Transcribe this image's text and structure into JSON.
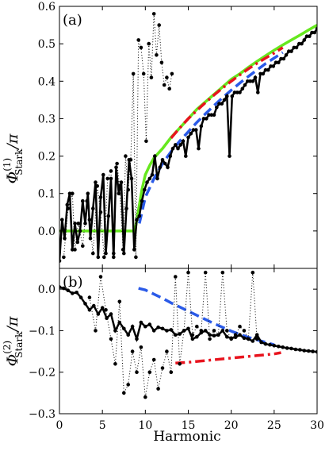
{
  "xlabel": "Harmonic",
  "chart_data": [
    {
      "type": "line",
      "panel_label": "(a)",
      "ylabel": {
        "main": "Φ",
        "superscript": "(1)",
        "subscript": "Stark",
        "suffix": "/π"
      },
      "xlim": [
        0,
        30
      ],
      "ylim": [
        -0.1,
        0.6
      ],
      "xticks": [
        "0",
        "5",
        "10",
        "15",
        "20",
        "25",
        "30"
      ],
      "yticks": [
        0.0,
        0.1,
        0.2,
        0.3,
        0.4,
        0.5,
        0.6
      ],
      "ytick_labels": [
        "0.0",
        "0.1",
        "0.2",
        "0.3",
        "0.4",
        "0.5",
        "0.6"
      ],
      "grid": false,
      "series": [
        {
          "style": "solid",
          "color": "#66e81e",
          "x": [
            0,
            8.8,
            9.0,
            9.3,
            9.6,
            10.0,
            10.5,
            11.0,
            12,
            13,
            14,
            15,
            16,
            17,
            18,
            19,
            20,
            21,
            22,
            23,
            24,
            25,
            26,
            27,
            28,
            29,
            30
          ],
          "y": [
            0.0,
            0.0,
            0.03,
            0.07,
            0.11,
            0.15,
            0.175,
            0.195,
            0.22,
            0.25,
            0.275,
            0.3,
            0.325,
            0.345,
            0.365,
            0.385,
            0.405,
            0.42,
            0.437,
            0.453,
            0.468,
            0.483,
            0.497,
            0.51,
            0.523,
            0.537,
            0.55
          ]
        },
        {
          "style": "dashdot",
          "color": "#e8141e",
          "x": [
            13,
            14,
            15,
            16,
            17,
            18,
            19,
            20,
            21,
            22,
            23,
            24,
            25,
            26
          ],
          "y": [
            0.248,
            0.275,
            0.3,
            0.322,
            0.343,
            0.363,
            0.382,
            0.4,
            0.417,
            0.433,
            0.448,
            0.462,
            0.475,
            0.49
          ]
        },
        {
          "style": "dashed",
          "color": "#2a5ae8",
          "x": [
            9.3,
            10,
            11,
            12,
            13,
            14,
            15,
            16,
            17,
            18,
            19,
            20,
            21,
            22,
            23,
            24,
            25,
            26
          ],
          "y": [
            0.02,
            0.09,
            0.14,
            0.18,
            0.212,
            0.24,
            0.265,
            0.29,
            0.313,
            0.335,
            0.356,
            0.376,
            0.395,
            0.413,
            0.43,
            0.447,
            0.462,
            0.477
          ]
        },
        {
          "style": "solid-dotted",
          "color": "#000000",
          "x": [
            0.0,
            0.3,
            0.6,
            0.9,
            1.2,
            1.5,
            1.8,
            2.1,
            2.4,
            2.7,
            3.0,
            3.3,
            3.6,
            3.9,
            4.2,
            4.5,
            4.8,
            5.1,
            5.4,
            5.7,
            6.0,
            6.3,
            6.6,
            6.9,
            7.2,
            7.5,
            7.8,
            8.1,
            8.4,
            8.7,
            9.0,
            9.3,
            9.6,
            9.9,
            10.2,
            10.5,
            10.8,
            11.1,
            11.4,
            11.7,
            12.0,
            12.3,
            12.6,
            12.9,
            13.2,
            13.5,
            13.8,
            14.1,
            14.4,
            14.7,
            15.0,
            15.3,
            15.6,
            15.9,
            16.2,
            16.5,
            16.8,
            17.1,
            17.4,
            17.7,
            18.0,
            18.3,
            18.6,
            18.9,
            19.2,
            19.5,
            19.8,
            20.1,
            20.4,
            20.7,
            21.0,
            21.3,
            21.6,
            21.9,
            22.2,
            22.5,
            22.8,
            23.1,
            23.4,
            23.7,
            24.0,
            24.3,
            24.6,
            24.9,
            25.2,
            25.5,
            25.8,
            26.1,
            26.4,
            26.7,
            27.0,
            27.3,
            27.6,
            27.9,
            28.2,
            28.5,
            28.8,
            29.1,
            29.4,
            29.7,
            30.0
          ],
          "y": [
            -0.08,
            0.03,
            -0.02,
            0.07,
            0.1,
            -0.05,
            0.02,
            -0.03,
            0.0,
            0.08,
            0.02,
            0.1,
            -0.02,
            0.06,
            0.13,
            -0.07,
            0.09,
            0.15,
            -0.06,
            0.04,
            0.14,
            -0.07,
            0.17,
            0.1,
            0.13,
            -0.06,
            0.06,
            0.19,
            0.14,
            -0.05,
            0.03,
            0.04,
            0.08,
            0.11,
            0.13,
            0.14,
            0.15,
            0.2,
            0.14,
            0.17,
            0.19,
            0.18,
            0.17,
            0.2,
            0.22,
            0.23,
            0.22,
            0.23,
            0.24,
            0.2,
            0.25,
            0.26,
            0.27,
            0.27,
            0.22,
            0.28,
            0.3,
            0.3,
            0.31,
            0.31,
            0.31,
            0.33,
            0.34,
            0.34,
            0.35,
            0.36,
            0.2,
            0.36,
            0.37,
            0.37,
            0.37,
            0.38,
            0.39,
            0.4,
            0.4,
            0.4,
            0.41,
            0.37,
            0.42,
            0.42,
            0.43,
            0.43,
            0.44,
            0.44,
            0.45,
            0.45,
            0.46,
            0.46,
            0.47,
            0.48,
            0.48,
            0.49,
            0.49,
            0.5,
            0.5,
            0.51,
            0.52,
            0.52,
            0.53,
            0.53,
            0.54
          ]
        },
        {
          "style": "dotted",
          "color": "#000000",
          "x": [
            0.5,
            1.0,
            1.5,
            1.8,
            2.2,
            2.7,
            3.2,
            3.5,
            3.9,
            4.4,
            4.8,
            5.2,
            5.6,
            6.0,
            6.3,
            6.7,
            7.0,
            7.4,
            7.7,
            8.0,
            8.3,
            8.6,
            8.9,
            9.2,
            9.5,
            9.8,
            10.1,
            10.4,
            10.7,
            11.0,
            11.3,
            11.6,
            11.9,
            12.2,
            12.5,
            12.8,
            13.1
          ],
          "y": [
            -0.07,
            0.06,
            0.1,
            -0.05,
            0.02,
            -0.04,
            0.08,
            0.03,
            -0.06,
            0.12,
            0.05,
            -0.07,
            0.14,
            0.16,
            -0.06,
            0.18,
            0.12,
            -0.05,
            0.2,
            0.11,
            0.19,
            0.42,
            -0.07,
            0.51,
            0.49,
            0.42,
            0.24,
            0.5,
            0.41,
            0.58,
            0.47,
            0.55,
            0.45,
            0.39,
            0.41,
            0.38,
            0.42
          ]
        }
      ]
    },
    {
      "type": "line",
      "panel_label": "(b)",
      "ylabel": {
        "main": "Φ",
        "superscript": "(2)",
        "subscript": "Stark",
        "suffix": "/π"
      },
      "xlim": [
        0,
        30
      ],
      "ylim": [
        -0.3,
        0.05
      ],
      "xticks": [
        "0",
        "5",
        "10",
        "15",
        "20",
        "25",
        "30"
      ],
      "yticks": [
        0.0,
        -0.1,
        -0.2,
        -0.3
      ],
      "ytick_labels": [
        "0.0",
        "−0.1",
        "−0.2",
        "−0.3"
      ],
      "grid": false,
      "series": [
        {
          "style": "dashed",
          "color": "#2a5ae8",
          "x": [
            9.2,
            10,
            11,
            12,
            13,
            14,
            15,
            16,
            17,
            18,
            19,
            20,
            21,
            22,
            23,
            24,
            25
          ],
          "y": [
            0.002,
            -0.002,
            -0.012,
            -0.022,
            -0.033,
            -0.043,
            -0.053,
            -0.063,
            -0.073,
            -0.083,
            -0.092,
            -0.101,
            -0.109,
            -0.116,
            -0.122,
            -0.128,
            -0.134
          ]
        },
        {
          "style": "dashdot",
          "color": "#e8141e",
          "x": [
            13.5,
            15,
            17,
            19,
            21,
            23,
            25,
            25.8
          ],
          "y": [
            -0.178,
            -0.176,
            -0.172,
            -0.168,
            -0.164,
            -0.16,
            -0.156,
            -0.153
          ]
        },
        {
          "style": "solid-dotted",
          "color": "#000000",
          "x": [
            0.0,
            0.5,
            1.0,
            1.5,
            2.0,
            2.5,
            3.0,
            3.5,
            4.0,
            4.5,
            5.0,
            5.5,
            6.0,
            6.5,
            7.0,
            7.5,
            8.0,
            8.5,
            9.0,
            9.5,
            10.0,
            10.5,
            11.0,
            11.5,
            12.0,
            12.5,
            13.0,
            13.5,
            14.0,
            14.5,
            15.0,
            15.5,
            16.0,
            16.5,
            17.0,
            17.5,
            18.0,
            18.5,
            19.0,
            19.5,
            20.0,
            20.5,
            21.0,
            21.5,
            22.0,
            22.5,
            23.0,
            23.5,
            24.0,
            24.5,
            25.0,
            25.5,
            26.0,
            26.5,
            27.0,
            27.5,
            28.0,
            28.5,
            29.0,
            29.5,
            30.0
          ],
          "y": [
            0.005,
            0.002,
            -0.003,
            -0.01,
            -0.008,
            -0.02,
            -0.035,
            -0.05,
            -0.04,
            -0.06,
            -0.045,
            -0.07,
            -0.06,
            -0.1,
            -0.08,
            -0.095,
            -0.11,
            -0.09,
            -0.12,
            -0.08,
            -0.09,
            -0.085,
            -0.1,
            -0.092,
            -0.095,
            -0.1,
            -0.098,
            -0.11,
            -0.108,
            -0.1,
            -0.095,
            -0.12,
            -0.115,
            -0.105,
            -0.1,
            -0.11,
            -0.112,
            -0.11,
            -0.1,
            -0.115,
            -0.118,
            -0.116,
            -0.11,
            -0.118,
            -0.12,
            -0.125,
            -0.11,
            -0.128,
            -0.132,
            -0.134,
            -0.136,
            -0.138,
            -0.14,
            -0.142,
            -0.143,
            -0.145,
            -0.146,
            -0.148,
            -0.149,
            -0.15,
            -0.151
          ]
        },
        {
          "style": "dotted",
          "color": "#000000",
          "x": [
            3.5,
            4.2,
            4.8,
            5.4,
            6.0,
            6.5,
            7.0,
            7.5,
            8.0,
            8.5,
            9.0,
            9.5,
            10.0,
            10.5,
            11.0,
            11.5,
            12.0,
            12.5,
            13.0,
            13.5,
            14.0,
            14.5,
            15.0,
            15.5,
            16.0,
            16.5,
            17.0,
            17.5,
            18.0,
            18.5,
            19.0,
            19.5,
            20.0,
            20.5,
            21.0,
            21.5,
            22.0,
            22.5,
            23.0
          ],
          "y": [
            -0.02,
            -0.1,
            0.03,
            -0.05,
            -0.12,
            -0.18,
            -0.03,
            -0.25,
            -0.23,
            -0.15,
            -0.2,
            -0.14,
            -0.26,
            -0.2,
            -0.17,
            -0.24,
            -0.19,
            -0.15,
            -0.2,
            0.03,
            -0.18,
            -0.1,
            0.04,
            -0.11,
            -0.09,
            -0.1,
            0.04,
            -0.12,
            -0.1,
            -0.11,
            0.04,
            -0.1,
            -0.12,
            -0.11,
            -0.09,
            -0.1,
            -0.12,
            0.04,
            -0.12
          ]
        }
      ]
    }
  ]
}
